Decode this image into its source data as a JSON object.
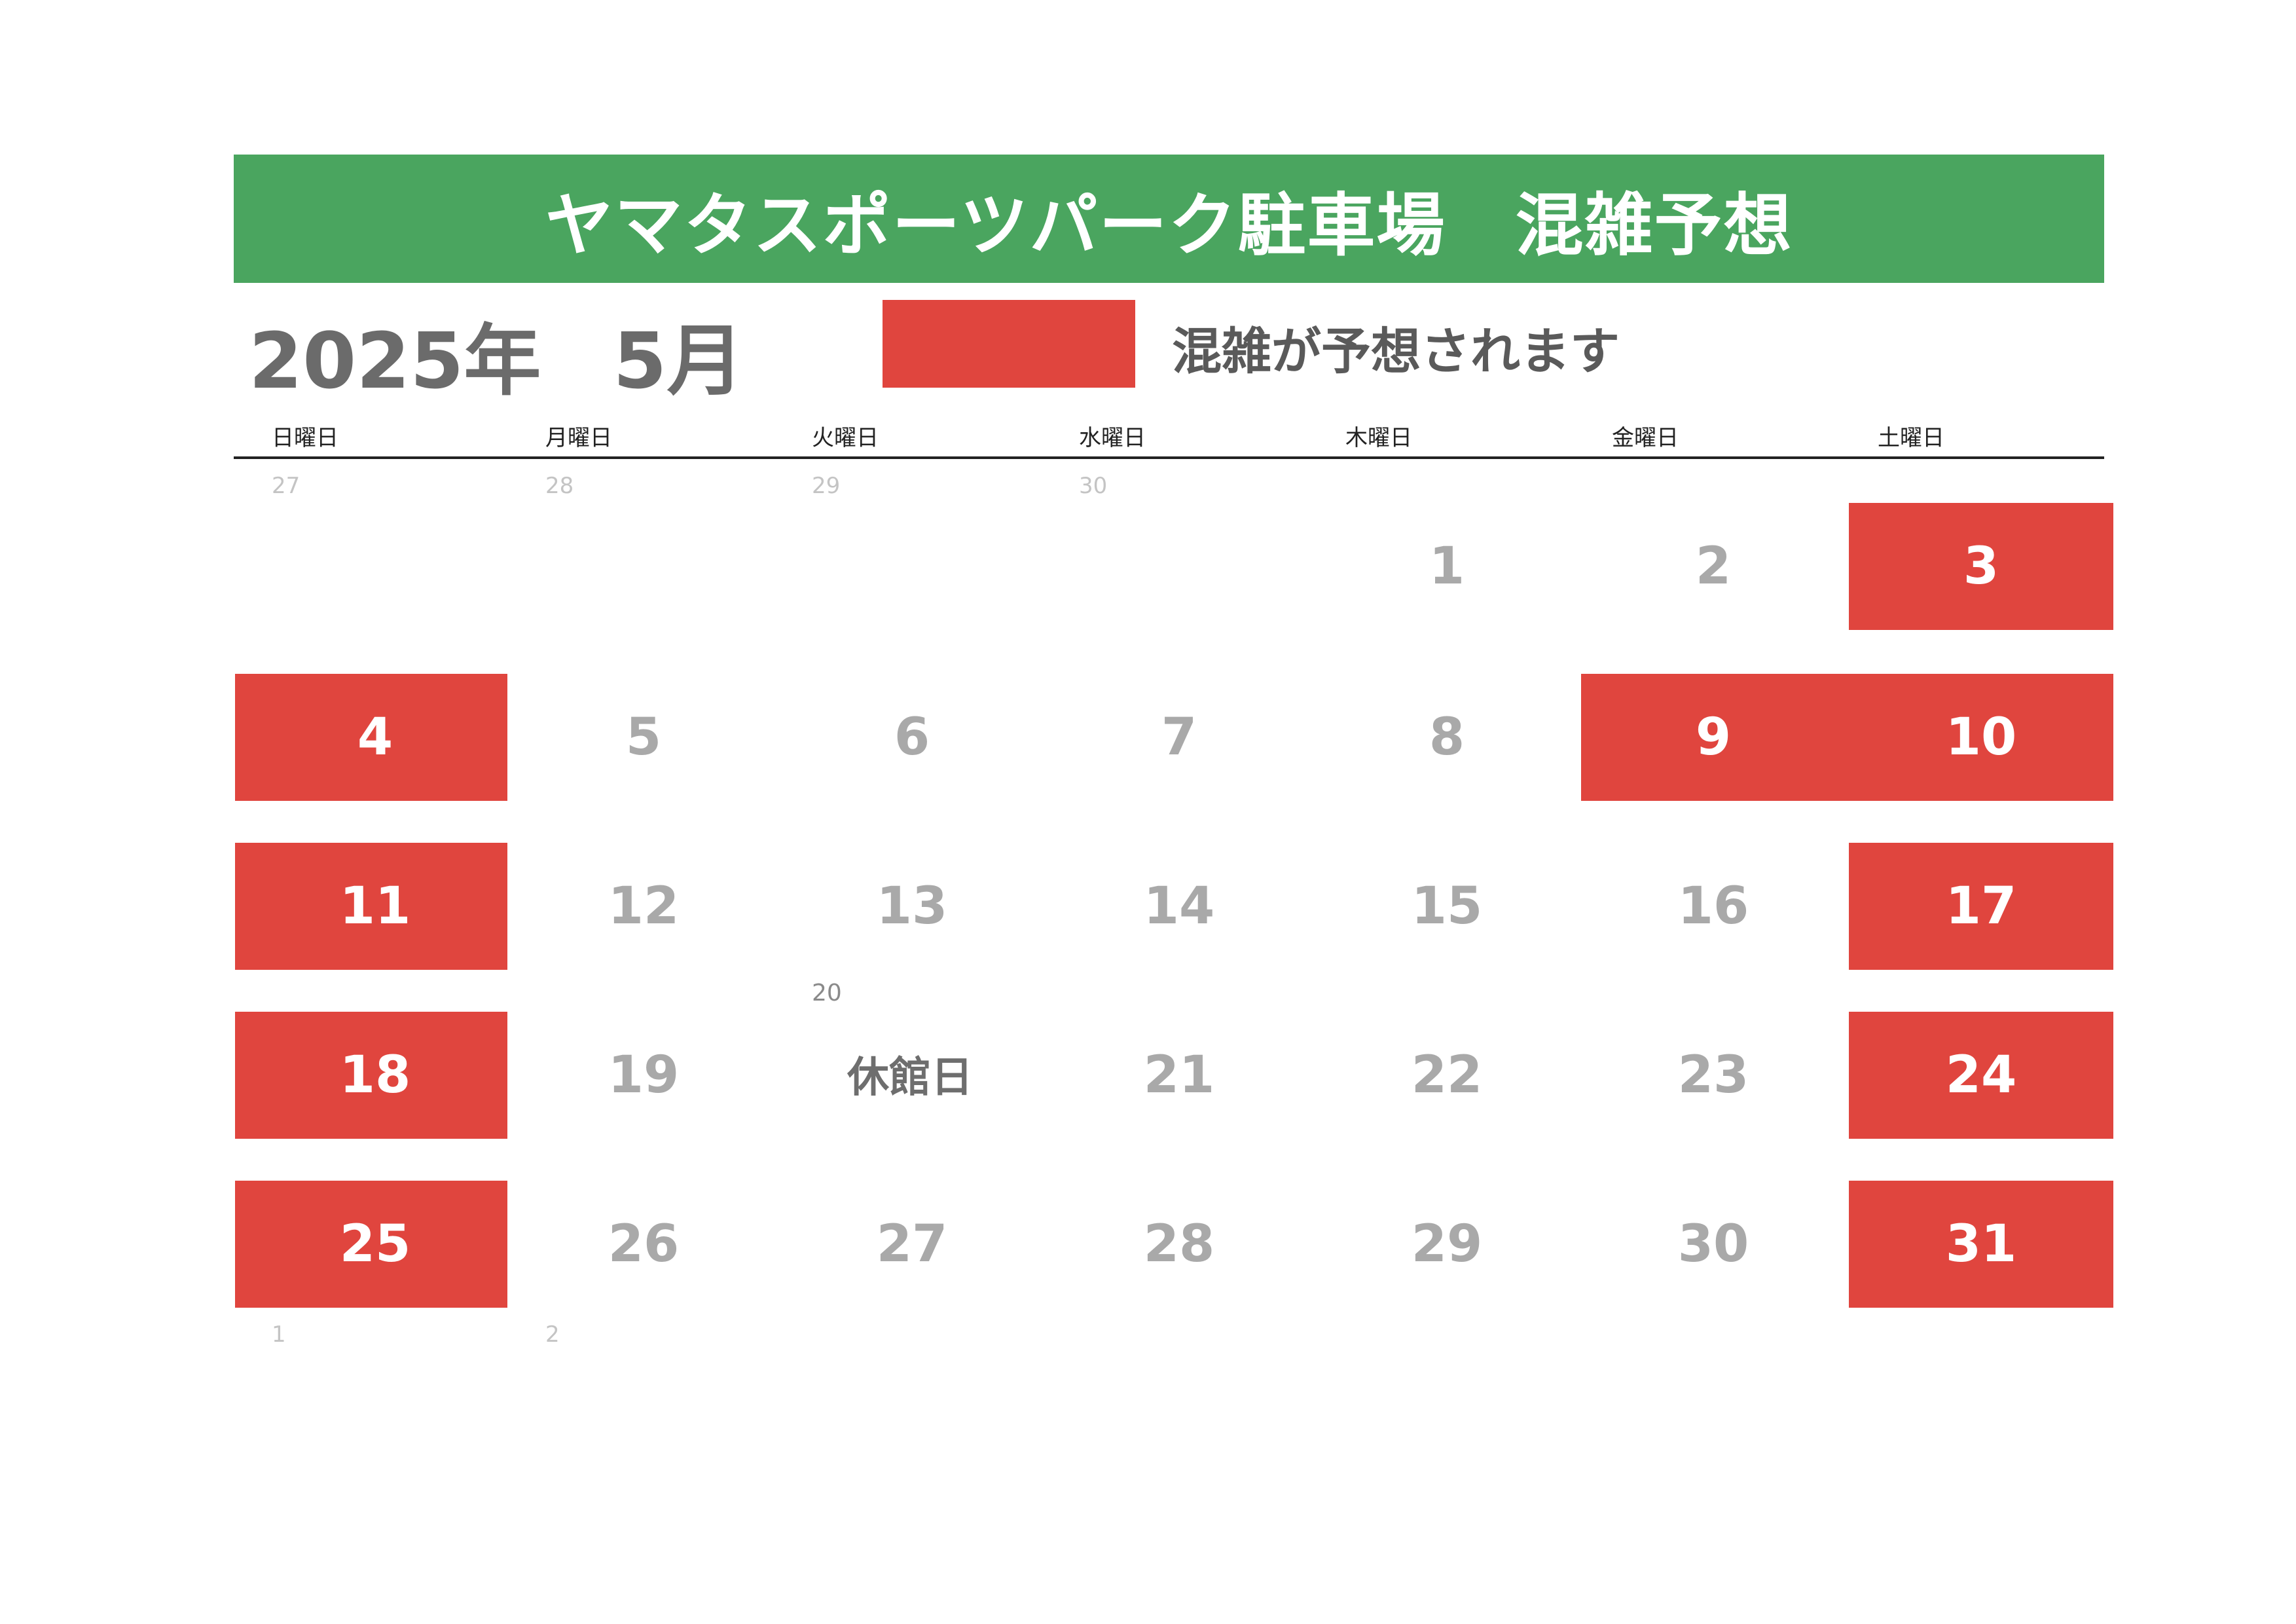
{
  "title": "ヤマタスポーツパーク駐車場　混雑予想",
  "year_label": "2025年",
  "month_label": "5月",
  "legend": {
    "text": "混雑が予想されます",
    "color": "#e0453e"
  },
  "colors": {
    "banner": "#4aa55f",
    "busy": "#e0453e",
    "day_text": "#a9a9a9"
  },
  "weekdays": [
    "日曜日",
    "月曜日",
    "火曜日",
    "水曜日",
    "木曜日",
    "金曜日",
    "土曜日"
  ],
  "prev_month_days": [
    "27",
    "28",
    "29",
    "30"
  ],
  "next_month_days": [
    "1",
    "2"
  ],
  "days": [
    {
      "label": "1",
      "busy": false
    },
    {
      "label": "2",
      "busy": false
    },
    {
      "label": "3",
      "busy": true
    },
    {
      "label": "4",
      "busy": true
    },
    {
      "label": "5",
      "busy": false
    },
    {
      "label": "6",
      "busy": false
    },
    {
      "label": "7",
      "busy": false
    },
    {
      "label": "8",
      "busy": false
    },
    {
      "label": "9",
      "busy": true
    },
    {
      "label": "10",
      "busy": true
    },
    {
      "label": "11",
      "busy": true
    },
    {
      "label": "12",
      "busy": false
    },
    {
      "label": "13",
      "busy": false
    },
    {
      "label": "14",
      "busy": false
    },
    {
      "label": "15",
      "busy": false
    },
    {
      "label": "16",
      "busy": false
    },
    {
      "label": "17",
      "busy": true
    },
    {
      "label": "18",
      "busy": true
    },
    {
      "label": "19",
      "busy": false
    },
    {
      "label": "20",
      "busy": false,
      "closed": true
    },
    {
      "label": "21",
      "busy": false
    },
    {
      "label": "22",
      "busy": false
    },
    {
      "label": "23",
      "busy": false
    },
    {
      "label": "24",
      "busy": true
    },
    {
      "label": "25",
      "busy": true
    },
    {
      "label": "26",
      "busy": false
    },
    {
      "label": "27",
      "busy": false
    },
    {
      "label": "28",
      "busy": false
    },
    {
      "label": "29",
      "busy": false
    },
    {
      "label": "30",
      "busy": false
    },
    {
      "label": "31",
      "busy": true
    }
  ],
  "closed_day": {
    "number": "20",
    "label": "休館日"
  }
}
